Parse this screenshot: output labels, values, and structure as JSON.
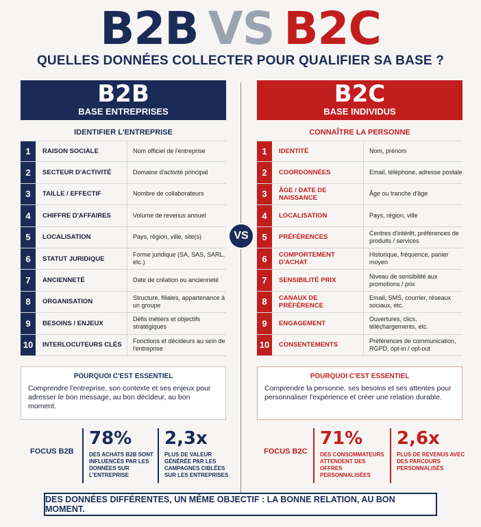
{
  "title": {
    "left": "B2B",
    "vs": "VS",
    "right": "B2C"
  },
  "subtitle": "QUELLES DONNÉES COLLECTER POUR QUALIFIER SA BASE ?",
  "vs_badge": "VS",
  "b2b": {
    "banner_big": "B2B",
    "banner_small": "BASE ENTREPRISES",
    "section_title": "IDENTIFIER L'ENTREPRISE",
    "rows": [
      {
        "num": "1",
        "label": "RAISON SOCIALE",
        "desc": "Nom officiel de l'entreprise"
      },
      {
        "num": "2",
        "label": "SECTEUR D'ACTIVITÉ",
        "desc": "Domaine d'activité principal"
      },
      {
        "num": "3",
        "label": "TAILLE / EFFECTIF",
        "desc": "Nombre de collaborateurs"
      },
      {
        "num": "4",
        "label": "CHIFFRE D'AFFAIRES",
        "desc": "Volume de revenus annuel"
      },
      {
        "num": "5",
        "label": "LOCALISATION",
        "desc": "Pays, région, ville, site(s)"
      },
      {
        "num": "6",
        "label": "STATUT JURIDIQUE",
        "desc": "Forme juridique (SA, SAS, SARL, etc.)"
      },
      {
        "num": "7",
        "label": "ANCIENNETÉ",
        "desc": "Date de création ou ancienneté"
      },
      {
        "num": "8",
        "label": "ORGANISATION",
        "desc": "Structure, filiales, appartenance à un groupe"
      },
      {
        "num": "9",
        "label": "BESOINS / ENJEUX",
        "desc": "Défis métiers et objectifs stratégiques"
      },
      {
        "num": "10",
        "label": "INTERLOCUTEURS CLÉS",
        "desc": "Fonctions et décideurs au sein de l'entreprise"
      }
    ],
    "why_title": "POURQUOI C'EST ESSENTIEL",
    "why_text": "Comprendre l'entreprise, son contexte et ses enjeux pour adresser le bon message, au bon décideur, au bon moment.",
    "focus_label": "FOCUS B2B",
    "stats": [
      {
        "value": "78%",
        "text": "DES ACHATS B2B SONT INFLUENCÉS PAR LES DONNÉES SUR L'ENTREPRISE"
      },
      {
        "value": "2,3x",
        "text": "PLUS DE VALEUR GÉNÉRÉE PAR LES CAMPAGNES CIBLÉES SUR LES ENTREPRISES"
      }
    ]
  },
  "b2c": {
    "banner_big": "B2C",
    "banner_small": "BASE INDIVIDUS",
    "section_title": "CONNAÎTRE LA PERSONNE",
    "rows": [
      {
        "num": "1",
        "label": "IDENTITÉ",
        "desc": "Nom, prénom"
      },
      {
        "num": "2",
        "label": "COORDONNÉES",
        "desc": "Email, téléphone, adresse postale"
      },
      {
        "num": "3",
        "label": "ÂGE / DATE DE NAISSANCE",
        "desc": "Âge ou tranche d'âge"
      },
      {
        "num": "4",
        "label": "LOCALISATION",
        "desc": "Pays, région, ville"
      },
      {
        "num": "5",
        "label": "PRÉFÉRENCES",
        "desc": "Centres d'intérêt, préférences de produits / services"
      },
      {
        "num": "6",
        "label": "COMPORTEMENT D'ACHAT",
        "desc": "Historique, fréquence, panier moyen"
      },
      {
        "num": "7",
        "label": "SENSIBILITÉ PRIX",
        "desc": "Niveau de sensibilité aux promotions / prix"
      },
      {
        "num": "8",
        "label": "CANAUX DE PRÉFÉRENCE",
        "desc": "Email, SMS, courrier, réseaux sociaux, etc."
      },
      {
        "num": "9",
        "label": "ENGAGEMENT",
        "desc": "Ouvertures, clics, téléchargements, etc."
      },
      {
        "num": "10",
        "label": "CONSENTEMENTS",
        "desc": "Préférences de communication, RGPD, opt-in / opt-out"
      }
    ],
    "why_title": "POURQUOI C'EST ESSENTIEL",
    "why_text": "Comprendre la personne, ses besoins et ses attentes pour personnaliser l'expérience et créer une relation durable.",
    "focus_label": "FOCUS B2C",
    "stats": [
      {
        "value": "71%",
        "text": "DES CONSOMMATEURS ATTENDENT DES OFFRES PERSONNALISÉES"
      },
      {
        "value": "2,6x",
        "text": "PLUS DE REVENUS AVEC DES PARCOURS PERSONNALISÉS"
      }
    ]
  },
  "footer": "DES DONNÉES DIFFÉRENTES, UN MÊME OBJECTIF : LA BONNE RELATION, AU BON MOMENT.",
  "colors": {
    "navy": "#1a2b57",
    "red": "#c21e1e",
    "grey": "#9aa3af"
  }
}
